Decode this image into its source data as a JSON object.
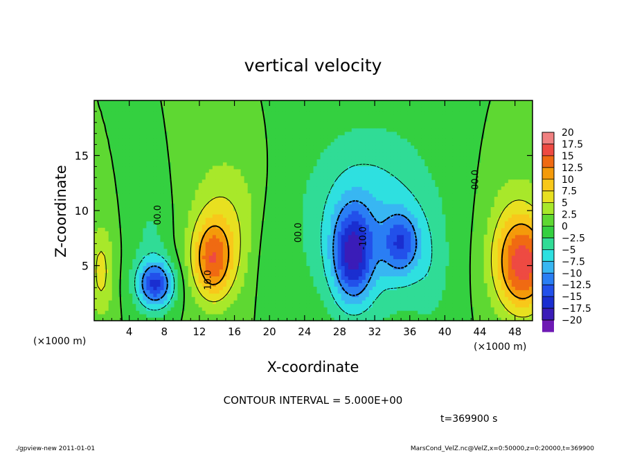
{
  "chart_data": {
    "type": "heatmap",
    "title": "vertical velocity",
    "xlabel": "X-coordinate",
    "ylabel": "Z-coordinate",
    "x_unit_left": "(×1000 m)",
    "x_unit_right": "(×1000 m)",
    "xlim": [
      0,
      50
    ],
    "ylim": [
      0,
      20
    ],
    "x_ticks": [
      4,
      8,
      12,
      16,
      20,
      24,
      28,
      32,
      36,
      40,
      44,
      48
    ],
    "y_ticks": [
      5,
      10,
      15
    ],
    "colorbar": {
      "levels": [
        "20",
        "17.5",
        "15",
        "12.5",
        "10",
        "7.5",
        "5",
        "2.5",
        "0",
        "−2.5",
        "−5",
        "−7.5",
        "−10",
        "−12.5",
        "−15",
        "−17.5",
        "−20"
      ],
      "colors": [
        "#f08080",
        "#ee4a42",
        "#f06a12",
        "#f49a0a",
        "#f8c81a",
        "#e8e020",
        "#a8e82a",
        "#5ed832",
        "#34d040",
        "#30dc96",
        "#2ee0e0",
        "#38b6f2",
        "#2a7ef4",
        "#2250ea",
        "#1a2ed0",
        "#3a1cb8",
        "#6e1ab4"
      ]
    },
    "field_background_color": "#5ed832",
    "blobs": [
      {
        "x": 0.8,
        "z": 4.5,
        "sx": 1.0,
        "sz": 3.0,
        "w": 6
      },
      {
        "x": 7,
        "z": 3.3,
        "sx": 1.5,
        "sz": 1.5,
        "w": -14
      },
      {
        "x": 6.5,
        "z": 7,
        "sx": 1.6,
        "sz": 4.0,
        "w": -3
      },
      {
        "x": 13.5,
        "z": 5.5,
        "sx": 1.6,
        "sz": 2.5,
        "w": 12
      },
      {
        "x": 15,
        "z": 9,
        "sx": 3.0,
        "sz": 4.5,
        "w": 5
      },
      {
        "x": 20,
        "z": 6,
        "sx": 1.3,
        "sz": 4.0,
        "w": -2
      },
      {
        "x": 29.5,
        "z": 6,
        "sx": 1.6,
        "sz": 3.0,
        "w": -14
      },
      {
        "x": 35,
        "z": 7,
        "sx": 1.5,
        "sz": 2.0,
        "w": -10
      },
      {
        "x": 31.5,
        "z": 9,
        "sx": 5.5,
        "sz": 6.0,
        "w": -7
      },
      {
        "x": 38.5,
        "z": 4,
        "sx": 1.5,
        "sz": 3.5,
        "w": -2
      },
      {
        "x": 49,
        "z": 5,
        "sx": 2.2,
        "sz": 3.0,
        "w": 14
      },
      {
        "x": 48,
        "z": 8,
        "sx": 2.5,
        "sz": 4.5,
        "w": 4
      }
    ],
    "contour_labels": [
      {
        "text": "00.0",
        "x": 7.6,
        "z": 9.6
      },
      {
        "text": "10.0",
        "x": 13.3,
        "z": 3.7
      },
      {
        "text": "00.0",
        "x": 23.6,
        "z": 8.0
      },
      {
        "text": "-10.0",
        "x": 31.0,
        "z": 7.5
      },
      {
        "text": "00.0",
        "x": 43.8,
        "z": 12.8
      }
    ],
    "contour_interval_text": "CONTOUR INTERVAL = 5.000E+00",
    "time_text": "t=369900 s"
  },
  "footer": {
    "left": "./gpview-new   2011-01-01",
    "right": "MarsCond_VelZ.nc@VelZ,x=0:50000,z=0:20000,t=369900"
  }
}
